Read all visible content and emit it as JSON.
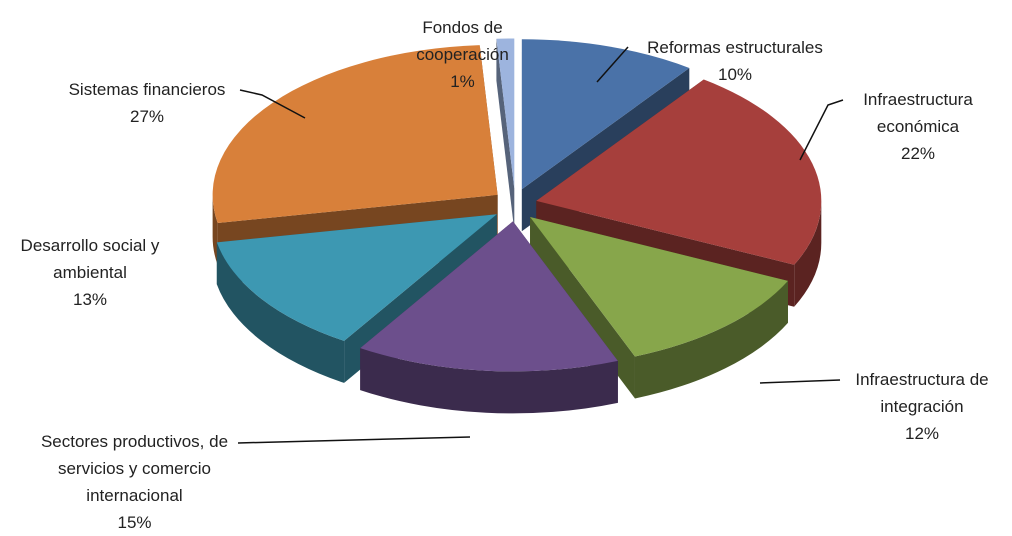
{
  "chart_data": {
    "type": "pie",
    "categories": [
      "Reformas estructurales",
      "Infraestructura económica",
      "Infraestructura de integración",
      "Sectores productivos, de servicios y comercio internacional",
      "Desarrollo social y ambiental",
      "Sistemas financieros",
      "Fondos de cooperación"
    ],
    "values": [
      10,
      22,
      12,
      15,
      13,
      27,
      1
    ],
    "value_labels": [
      "10%",
      "22%",
      "12%",
      "15%",
      "13%",
      "27%",
      "1%"
    ],
    "colors": [
      "#4a72a8",
      "#a63f3c",
      "#87a64b",
      "#6c4f8c",
      "#3d98b2",
      "#d8803a",
      "#9db4de"
    ]
  }
}
